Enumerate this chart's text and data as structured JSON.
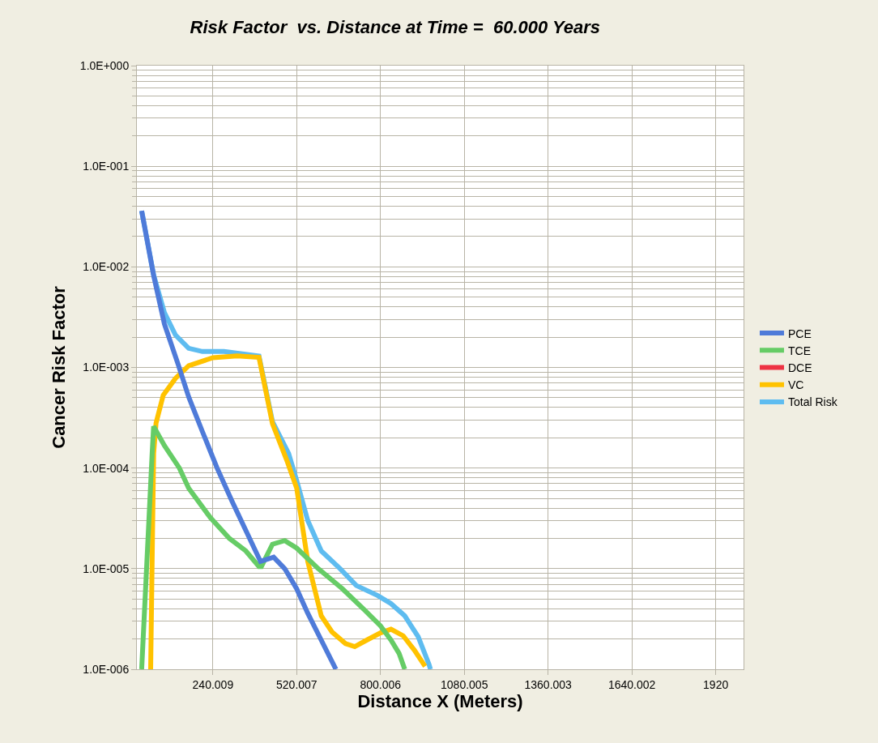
{
  "chart_data": {
    "type": "line",
    "title": "Risk Factor  vs. Distance at Time =  60.000 Years",
    "xlabel": "Distance X (Meters)",
    "ylabel": "Cancer Risk Factor",
    "log": "y",
    "grid": true,
    "legend": "right",
    "marker": "none",
    "line_style": "solid",
    "xlim": [
      -14,
      2013
    ],
    "xticks": [
      240.009,
      520.007,
      800.006,
      1080.005,
      1360.003,
      1640.002,
      1920
    ],
    "ylim": [
      1e-06,
      1
    ],
    "yticks": [
      {
        "value": 1e-06,
        "label": "1.0E-006"
      },
      {
        "value": 1e-05,
        "label": "1.0E-005"
      },
      {
        "value": 0.0001,
        "label": "1.0E-004"
      },
      {
        "value": 0.001,
        "label": "1.0E-003"
      },
      {
        "value": 0.01,
        "label": "1.0E-002"
      },
      {
        "value": 0.1,
        "label": "1.0E-001"
      },
      {
        "value": 1,
        "label": "1.0E+000"
      }
    ],
    "series": [
      {
        "name": "PCE",
        "color": "#4f7bd9",
        "x": [
          2,
          42,
          78,
          124,
          159,
          205,
          254,
          305,
          399,
          443,
          480,
          520,
          557,
          602,
          651
        ],
        "values": [
          0.036,
          0.0082,
          0.0027,
          0.00107,
          0.00051,
          0.00023,
          0.0001,
          4.6e-05,
          1.18e-05,
          1.3e-05,
          1e-05,
          6.3e-06,
          3.6e-06,
          1.95e-06,
          1e-06
        ]
      },
      {
        "name": "TCE",
        "color": "#66cc66",
        "x": [
          2,
          37,
          42,
          78,
          128,
          159,
          232,
          295,
          350,
          394,
          402,
          439,
          480,
          520,
          592,
          673,
          746,
          800,
          835,
          862,
          881
        ],
        "values": [
          1e-06,
          0.00014,
          0.00026,
          0.000167,
          0.0001,
          6.3e-05,
          3.2e-05,
          2e-05,
          1.5e-05,
          1.05e-05,
          1.05e-05,
          1.75e-05,
          1.9e-05,
          1.6e-05,
          1e-05,
          6.3e-06,
          3.9e-06,
          2.7e-06,
          1.95e-06,
          1.44e-06,
          1e-06
        ]
      },
      {
        "name": "DCE",
        "color": "#ee3344"
      },
      {
        "name": "VC",
        "color": "#ffc200",
        "x": [
          32,
          42,
          50,
          74,
          115,
          159,
          240,
          321,
          394,
          439,
          489,
          520,
          557,
          602,
          638,
          683,
          714,
          754,
          800,
          835,
          876,
          913,
          949
        ],
        "values": [
          1e-06,
          0.00014,
          0.00028,
          0.00053,
          0.00078,
          0.00104,
          0.00125,
          0.0013,
          0.00126,
          0.000276,
          0.000115,
          6.3e-05,
          1.18e-05,
          3.4e-06,
          2.35e-06,
          1.8e-06,
          1.68e-06,
          1.95e-06,
          2.3e-06,
          2.5e-06,
          2.15e-06,
          1.55e-06,
          1.07e-06
        ]
      },
      {
        "name": "Total Risk",
        "color": "#5ebcf0",
        "x": [
          2,
          42,
          78,
          115,
          159,
          205,
          277,
          394,
          439,
          493,
          520,
          557,
          602,
          665,
          719,
          791,
          835,
          881,
          926,
          962,
          967
        ],
        "values": [
          0.036,
          0.0083,
          0.0035,
          0.0021,
          0.00155,
          0.00144,
          0.00144,
          0.0013,
          0.00029,
          0.00014,
          7.5e-05,
          3e-05,
          1.5e-05,
          1e-05,
          6.8e-06,
          5.4e-06,
          4.5e-06,
          3.4e-06,
          2.1e-06,
          1.12e-06,
          1e-06
        ]
      }
    ]
  }
}
